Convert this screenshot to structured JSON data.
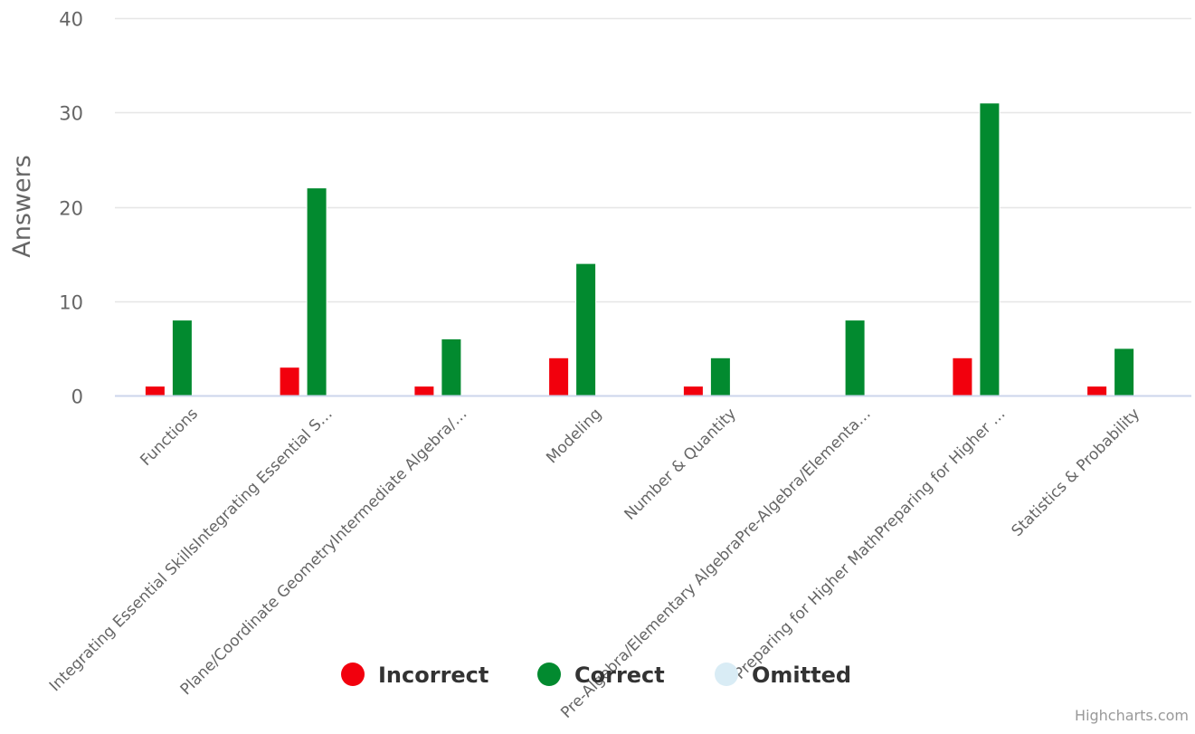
{
  "chart_data": {
    "type": "bar",
    "title": "",
    "xlabel": "",
    "ylabel": "Answers",
    "ylim": [
      0,
      40
    ],
    "yticks": [
      0,
      10,
      20,
      30,
      40
    ],
    "grid": true,
    "legend_position": "bottom-center",
    "categories": [
      "Functions",
      "Integrating Essential SkillsIntegrating Essential S…",
      "Plane/Coordinate GeometryIntermediate Algebra/…",
      "Modeling",
      "Number & Quantity",
      "Pre-Algebra/Elementary AlgebraPre-Algebra/Elementa…",
      "Preparing for Higher MathPreparing for Higher …",
      "Statistics & Probability"
    ],
    "series": [
      {
        "name": "Incorrect",
        "color": "#f2000d",
        "values": [
          1,
          3,
          1,
          4,
          1,
          0,
          4,
          1
        ]
      },
      {
        "name": "Correct",
        "color": "#028a2f",
        "values": [
          8,
          22,
          6,
          14,
          4,
          8,
          31,
          5
        ]
      },
      {
        "name": "Omitted",
        "color": "#d9ecf5",
        "values": [
          0,
          0,
          0,
          0,
          0,
          0,
          0,
          0
        ]
      }
    ]
  },
  "credits": "Highcharts.com"
}
